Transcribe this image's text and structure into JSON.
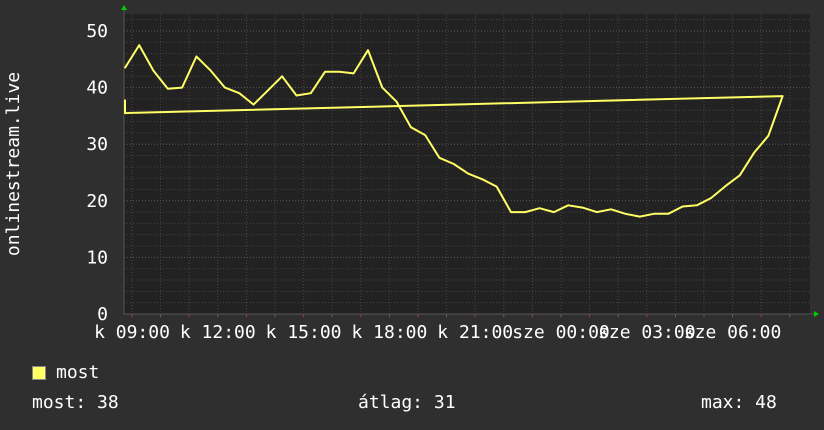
{
  "chart_data": {
    "type": "line",
    "ylabel": "onlinestream.live",
    "ylim": [
      0,
      53
    ],
    "yticks": [
      0,
      10,
      20,
      30,
      40,
      50
    ],
    "xtick_labels": [
      "k 09:00",
      "k 12:00",
      "k 15:00",
      "k 18:00",
      "k 21:00",
      "sze 00:00",
      "sze 03:00",
      "sze 06:00"
    ],
    "grid": true,
    "x": [
      "08:45",
      "09:15",
      "09:45",
      "10:15",
      "10:45",
      "11:15",
      "11:45",
      "12:15",
      "12:45",
      "13:15",
      "13:45",
      "14:15",
      "14:45",
      "15:15",
      "15:45",
      "16:15",
      "16:45",
      "17:15",
      "17:45",
      "18:15",
      "18:45",
      "19:15",
      "19:45",
      "20:15",
      "20:45",
      "21:15",
      "21:45",
      "22:15",
      "22:45",
      "23:15",
      "23:45",
      "00:15",
      "00:45",
      "01:15",
      "01:45",
      "02:15",
      "02:45",
      "03:15",
      "03:45",
      "04:15",
      "04:45",
      "05:15",
      "05:45",
      "06:15",
      "06:45",
      "07:15",
      "07:45",
      "08:15",
      "08:45"
    ],
    "series": [
      {
        "name": "most",
        "color": "#ffff66",
        "values": [
          43.5,
          47.5,
          43,
          39.8,
          40,
          45.5,
          43,
          40,
          39,
          37,
          39.5,
          42,
          38.6,
          39,
          42.8,
          42.8,
          42.5,
          46.6,
          40,
          37.5,
          33,
          31.6,
          27.6,
          26.5,
          24.8,
          23.8,
          22.5,
          18,
          18,
          18.7,
          18,
          19.2,
          18.8,
          18,
          18.5,
          17.7,
          17.2,
          17.7,
          17.7,
          19,
          19.2,
          20.5,
          22.6,
          24.5,
          28.5,
          31.5,
          38.5,
          35.5,
          37.8
        ]
      }
    ]
  },
  "legend": {
    "label": "most",
    "color": "#ffff66"
  },
  "stats": {
    "current": "most: 38",
    "average": "átlag: 31",
    "max": "max: 48"
  }
}
